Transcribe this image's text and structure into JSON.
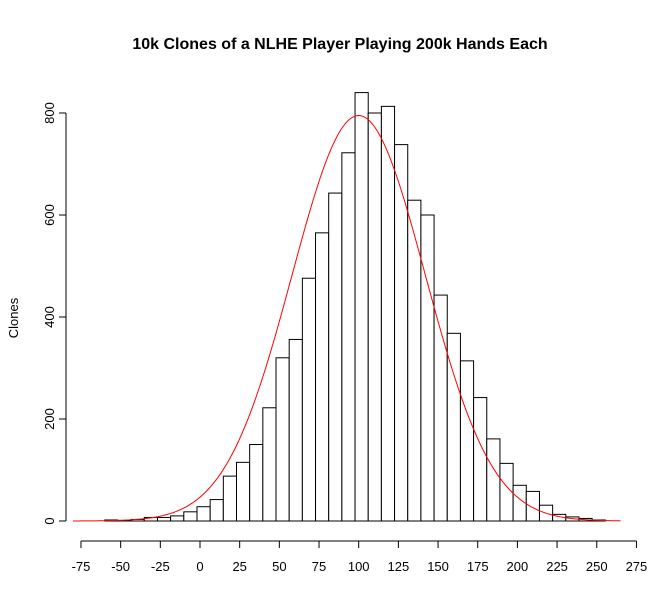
{
  "chart_data": {
    "type": "bar",
    "title": "10k Clones of a NLHE Player Playing 200k Hands Each",
    "xlabel": "",
    "ylabel": "Clones",
    "xlim": [
      -80,
      270
    ],
    "ylim": [
      0,
      840
    ],
    "x_ticks": [
      -75,
      -50,
      -25,
      0,
      25,
      50,
      75,
      100,
      125,
      150,
      175,
      200,
      225,
      250,
      275
    ],
    "y_ticks": [
      0,
      200,
      400,
      600,
      800
    ],
    "bin_width": 8.3,
    "bins": [
      {
        "x0": -60.0,
        "value": 2
      },
      {
        "x0": -51.7,
        "value": 1
      },
      {
        "x0": -43.4,
        "value": 3
      },
      {
        "x0": -35.1,
        "value": 7
      },
      {
        "x0": -26.8,
        "value": 7
      },
      {
        "x0": -18.5,
        "value": 10
      },
      {
        "x0": -10.2,
        "value": 18
      },
      {
        "x0": -1.9,
        "value": 28
      },
      {
        "x0": 6.4,
        "value": 42
      },
      {
        "x0": 14.7,
        "value": 88
      },
      {
        "x0": 23.0,
        "value": 115
      },
      {
        "x0": 31.3,
        "value": 150
      },
      {
        "x0": 39.6,
        "value": 222
      },
      {
        "x0": 47.9,
        "value": 320
      },
      {
        "x0": 56.2,
        "value": 356
      },
      {
        "x0": 64.5,
        "value": 476
      },
      {
        "x0": 72.8,
        "value": 565
      },
      {
        "x0": 81.1,
        "value": 643
      },
      {
        "x0": 89.4,
        "value": 722
      },
      {
        "x0": 97.7,
        "value": 840
      },
      {
        "x0": 106.0,
        "value": 800
      },
      {
        "x0": 114.3,
        "value": 813
      },
      {
        "x0": 122.6,
        "value": 738
      },
      {
        "x0": 130.9,
        "value": 629
      },
      {
        "x0": 139.2,
        "value": 600
      },
      {
        "x0": 147.5,
        "value": 443
      },
      {
        "x0": 155.8,
        "value": 368
      },
      {
        "x0": 164.1,
        "value": 314
      },
      {
        "x0": 172.4,
        "value": 242
      },
      {
        "x0": 180.7,
        "value": 161
      },
      {
        "x0": 189.0,
        "value": 113
      },
      {
        "x0": 197.3,
        "value": 70
      },
      {
        "x0": 205.6,
        "value": 58
      },
      {
        "x0": 213.9,
        "value": 31
      },
      {
        "x0": 222.2,
        "value": 13
      },
      {
        "x0": 230.5,
        "value": 8
      },
      {
        "x0": 238.8,
        "value": 5
      },
      {
        "x0": 247.1,
        "value": 2
      }
    ],
    "density_curve": {
      "mean": 100,
      "sd": 42,
      "peak": 795,
      "color": "#ff0000"
    },
    "bar_fill": "#ffffff",
    "bar_stroke": "#000000"
  }
}
